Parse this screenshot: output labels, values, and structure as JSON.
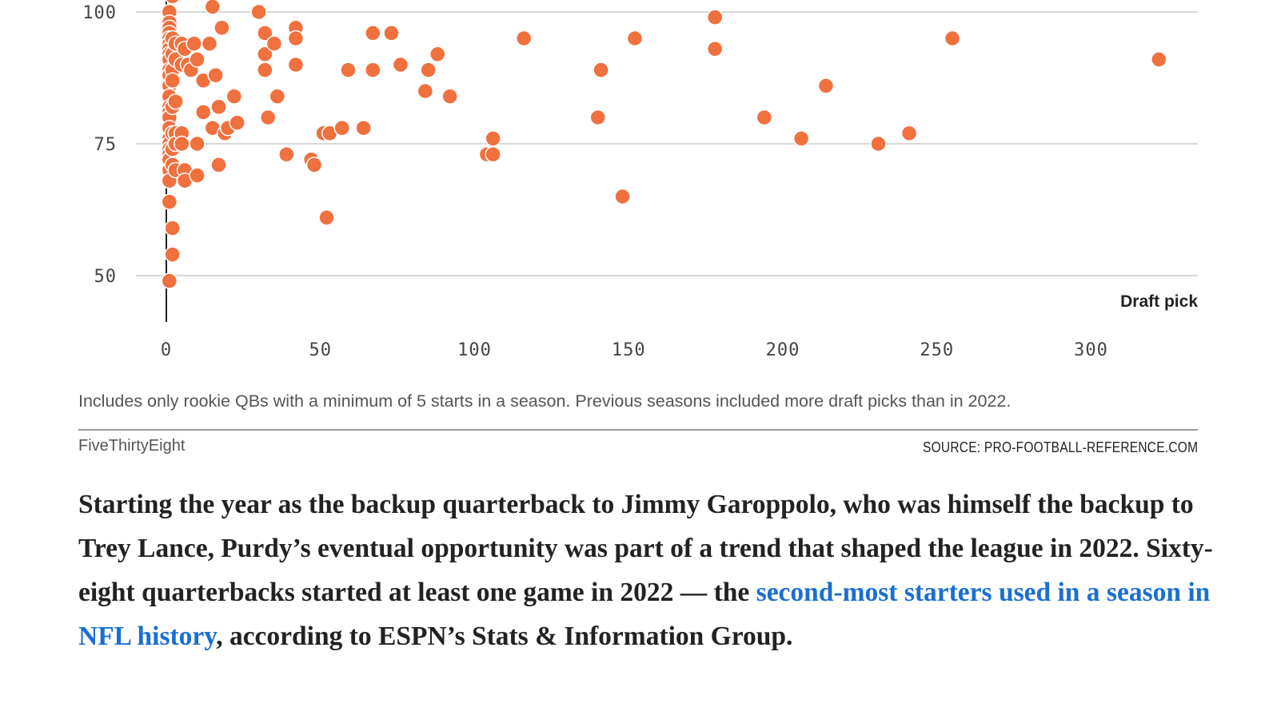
{
  "chart_data": {
    "type": "scatter",
    "title": "",
    "xlabel": "Draft pick",
    "ylabel": "",
    "xlim": [
      0,
      335
    ],
    "ylim": [
      40,
      105
    ],
    "x_ticks": [
      "0",
      "50",
      "100",
      "150",
      "200",
      "250",
      "300"
    ],
    "y_ticks": [
      "100",
      "75",
      "50"
    ],
    "grid": "horizontal",
    "point_color": "#f0703e",
    "series": [
      {
        "points": [
          [
            1,
            100
          ],
          [
            1,
            98
          ],
          [
            1,
            97
          ],
          [
            1,
            96
          ],
          [
            1,
            95
          ],
          [
            1,
            94
          ],
          [
            1,
            93
          ],
          [
            1,
            92
          ],
          [
            1,
            91
          ],
          [
            1,
            89
          ],
          [
            1,
            88
          ],
          [
            1,
            86
          ],
          [
            1,
            84
          ],
          [
            1,
            82
          ],
          [
            1,
            81
          ],
          [
            1,
            80
          ],
          [
            1,
            78
          ],
          [
            1,
            76
          ],
          [
            1,
            75
          ],
          [
            1,
            74
          ],
          [
            1,
            73
          ],
          [
            1,
            72
          ],
          [
            1,
            70
          ],
          [
            1,
            68
          ],
          [
            1,
            64
          ],
          [
            2,
            103
          ],
          [
            2,
            95
          ],
          [
            2,
            92
          ],
          [
            2,
            89
          ],
          [
            2,
            87
          ],
          [
            2,
            82
          ],
          [
            2,
            77
          ],
          [
            2,
            74
          ],
          [
            2,
            71
          ],
          [
            2,
            59
          ],
          [
            2,
            54
          ],
          [
            1,
            49
          ],
          [
            3,
            94
          ],
          [
            3,
            91
          ],
          [
            3,
            83
          ],
          [
            3,
            77
          ],
          [
            3,
            75
          ],
          [
            3,
            70
          ],
          [
            5,
            94
          ],
          [
            5,
            90
          ],
          [
            5,
            77
          ],
          [
            5,
            75
          ],
          [
            6,
            93
          ],
          [
            6,
            70
          ],
          [
            6,
            68
          ],
          [
            7,
            90
          ],
          [
            8,
            89
          ],
          [
            9,
            94
          ],
          [
            10,
            91
          ],
          [
            10,
            69
          ],
          [
            10,
            75
          ],
          [
            12,
            87
          ],
          [
            12,
            81
          ],
          [
            15,
            101
          ],
          [
            14,
            94
          ],
          [
            15,
            78
          ],
          [
            16,
            88
          ],
          [
            17,
            82
          ],
          [
            17,
            71
          ],
          [
            18,
            97
          ],
          [
            19,
            77
          ],
          [
            20,
            78
          ],
          [
            22,
            84
          ],
          [
            23,
            79
          ],
          [
            30,
            100
          ],
          [
            32,
            96
          ],
          [
            32,
            92
          ],
          [
            32,
            89
          ],
          [
            33,
            80
          ],
          [
            35,
            94
          ],
          [
            36,
            84
          ],
          [
            39,
            73
          ],
          [
            42,
            97
          ],
          [
            42,
            95
          ],
          [
            42,
            90
          ],
          [
            47,
            72
          ],
          [
            48,
            71
          ],
          [
            51,
            77
          ],
          [
            53,
            77
          ],
          [
            52,
            61
          ],
          [
            57,
            78
          ],
          [
            59,
            89
          ],
          [
            64,
            78
          ],
          [
            67,
            96
          ],
          [
            67,
            89
          ],
          [
            73,
            96
          ],
          [
            76,
            90
          ],
          [
            84,
            85
          ],
          [
            85,
            89
          ],
          [
            88,
            92
          ],
          [
            92,
            84
          ],
          [
            104,
            73
          ],
          [
            106,
            73
          ],
          [
            106,
            76
          ],
          [
            116,
            95
          ],
          [
            140,
            80
          ],
          [
            141,
            89
          ],
          [
            148,
            65
          ],
          [
            152,
            95
          ],
          [
            178,
            99
          ],
          [
            178,
            93
          ],
          [
            194,
            80
          ],
          [
            206,
            76
          ],
          [
            214,
            86
          ],
          [
            231,
            75
          ],
          [
            241,
            77
          ],
          [
            255,
            95
          ],
          [
            322,
            91
          ]
        ]
      }
    ]
  },
  "footer": {
    "note": "Includes only rookie QBs with a minimum of 5 starts in a season. Previous seasons included more draft picks than in 2022.",
    "brand": "FiveThirtyEight",
    "source": "SOURCE: PRO-FOOTBALL-REFERENCE.COM"
  },
  "article": {
    "text_before": "Starting the year as the backup quarterback to Jimmy Garoppolo, who was himself the backup to Trey Lance, Purdy’s eventual opportunity was part of a trend that shaped the league in 2022. Sixty-eight quarterbacks started at least one game in 2022 — the ",
    "link_text": "second-most starters used in a season in NFL history",
    "text_after": ", according to ESPN’s Stats & Information Group."
  }
}
